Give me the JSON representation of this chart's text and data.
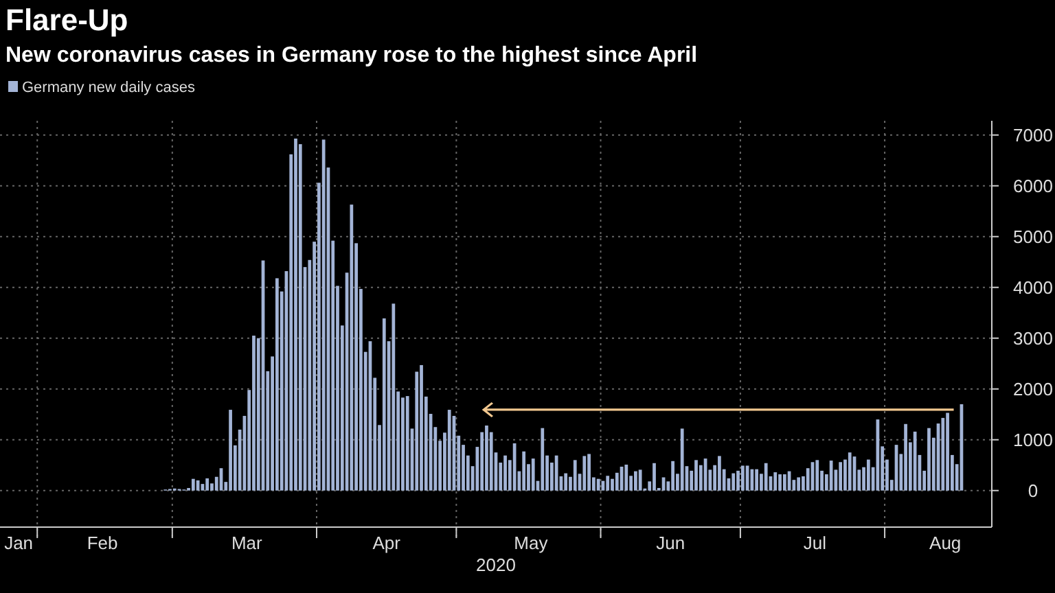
{
  "chart_data": {
    "type": "bar",
    "title": "Flare-Up",
    "subtitle": "New coronavirus cases in Germany rose to the highest since April",
    "xlabel": "2020",
    "x": [
      "2020-01-24",
      "2020-01-25",
      "2020-01-26",
      "2020-01-27",
      "2020-01-28",
      "2020-01-29",
      "2020-01-30",
      "2020-01-31",
      "2020-02-01",
      "2020-02-02",
      "2020-02-03",
      "2020-02-04",
      "2020-02-05",
      "2020-02-06",
      "2020-02-07",
      "2020-02-08",
      "2020-02-09",
      "2020-02-10",
      "2020-02-11",
      "2020-02-12",
      "2020-02-13",
      "2020-02-14",
      "2020-02-15",
      "2020-02-16",
      "2020-02-17",
      "2020-02-18",
      "2020-02-19",
      "2020-02-20",
      "2020-02-21",
      "2020-02-22",
      "2020-02-23",
      "2020-02-24",
      "2020-02-25",
      "2020-02-26",
      "2020-02-27",
      "2020-02-28",
      "2020-02-29",
      "2020-03-01",
      "2020-03-02",
      "2020-03-03",
      "2020-03-04",
      "2020-03-05",
      "2020-03-06",
      "2020-03-07",
      "2020-03-08",
      "2020-03-09",
      "2020-03-10",
      "2020-03-11",
      "2020-03-12",
      "2020-03-13",
      "2020-03-14",
      "2020-03-15",
      "2020-03-16",
      "2020-03-17",
      "2020-03-18",
      "2020-03-19",
      "2020-03-20",
      "2020-03-21",
      "2020-03-22",
      "2020-03-23",
      "2020-03-24",
      "2020-03-25",
      "2020-03-26",
      "2020-03-27",
      "2020-03-28",
      "2020-03-29",
      "2020-03-30",
      "2020-03-31",
      "2020-04-01",
      "2020-04-02",
      "2020-04-03",
      "2020-04-04",
      "2020-04-05",
      "2020-04-06",
      "2020-04-07",
      "2020-04-08",
      "2020-04-09",
      "2020-04-10",
      "2020-04-11",
      "2020-04-12",
      "2020-04-13",
      "2020-04-14",
      "2020-04-15",
      "2020-04-16",
      "2020-04-17",
      "2020-04-18",
      "2020-04-19",
      "2020-04-20",
      "2020-04-21",
      "2020-04-22",
      "2020-04-23",
      "2020-04-24",
      "2020-04-25",
      "2020-04-26",
      "2020-04-27",
      "2020-04-28",
      "2020-04-29",
      "2020-04-30",
      "2020-05-01",
      "2020-05-02",
      "2020-05-03",
      "2020-05-04",
      "2020-05-05",
      "2020-05-06",
      "2020-05-07",
      "2020-05-08",
      "2020-05-09",
      "2020-05-10",
      "2020-05-11",
      "2020-05-12",
      "2020-05-13",
      "2020-05-14",
      "2020-05-15",
      "2020-05-16",
      "2020-05-17",
      "2020-05-18",
      "2020-05-19",
      "2020-05-20",
      "2020-05-21",
      "2020-05-22",
      "2020-05-23",
      "2020-05-24",
      "2020-05-25",
      "2020-05-26",
      "2020-05-27",
      "2020-05-28",
      "2020-05-29",
      "2020-05-30",
      "2020-05-31",
      "2020-06-01",
      "2020-06-02",
      "2020-06-03",
      "2020-06-04",
      "2020-06-05",
      "2020-06-06",
      "2020-06-07",
      "2020-06-08",
      "2020-06-09",
      "2020-06-10",
      "2020-06-11",
      "2020-06-12",
      "2020-06-13",
      "2020-06-14",
      "2020-06-15",
      "2020-06-16",
      "2020-06-17",
      "2020-06-18",
      "2020-06-19",
      "2020-06-20",
      "2020-06-21",
      "2020-06-22",
      "2020-06-23",
      "2020-06-24",
      "2020-06-25",
      "2020-06-26",
      "2020-06-27",
      "2020-06-28",
      "2020-06-29",
      "2020-06-30",
      "2020-07-01",
      "2020-07-02",
      "2020-07-03",
      "2020-07-04",
      "2020-07-05",
      "2020-07-06",
      "2020-07-07",
      "2020-07-08",
      "2020-07-09",
      "2020-07-10",
      "2020-07-11",
      "2020-07-12",
      "2020-07-13",
      "2020-07-14",
      "2020-07-15",
      "2020-07-16",
      "2020-07-17",
      "2020-07-18",
      "2020-07-19",
      "2020-07-20",
      "2020-07-21",
      "2020-07-22",
      "2020-07-23",
      "2020-07-24",
      "2020-07-25",
      "2020-07-26",
      "2020-07-27",
      "2020-07-28",
      "2020-07-29",
      "2020-07-30",
      "2020-07-31",
      "2020-08-01",
      "2020-08-02",
      "2020-08-03",
      "2020-08-04",
      "2020-08-05",
      "2020-08-06",
      "2020-08-07",
      "2020-08-08",
      "2020-08-09",
      "2020-08-10",
      "2020-08-11",
      "2020-08-12",
      "2020-08-13",
      "2020-08-14",
      "2020-08-15",
      "2020-08-16",
      "2020-08-17"
    ],
    "series": [
      {
        "name": "Germany new daily cases",
        "color": "#a3b4d6",
        "values": [
          0,
          0,
          0,
          0,
          0,
          0,
          0,
          0,
          0,
          0,
          0,
          0,
          0,
          0,
          0,
          0,
          0,
          0,
          0,
          0,
          0,
          0,
          0,
          0,
          0,
          0,
          0,
          0,
          0,
          0,
          0,
          0,
          0,
          null,
          null,
          20,
          30,
          40,
          30,
          20,
          50,
          230,
          200,
          130,
          240,
          140,
          270,
          440,
          170,
          1590,
          890,
          1200,
          1470,
          1980,
          3050,
          3000,
          4530,
          2350,
          2640,
          4180,
          3920,
          4320,
          6620,
          6930,
          6820,
          4400,
          4540,
          4900,
          6060,
          6910,
          6360,
          4920,
          4030,
          3250,
          4290,
          5630,
          4870,
          3970,
          2730,
          2940,
          2220,
          1290,
          3390,
          2940,
          3680,
          1950,
          1830,
          1860,
          1220,
          2340,
          2470,
          1850,
          1510,
          1250,
          980,
          1140,
          1590,
          1470,
          1080,
          900,
          690,
          480,
          860,
          1150,
          1280,
          1150,
          750,
          550,
          690,
          600,
          930,
          380,
          770,
          520,
          630,
          190,
          1230,
          690,
          550,
          690,
          280,
          340,
          270,
          600,
          330,
          680,
          720,
          260,
          230,
          190,
          290,
          230,
          350,
          470,
          510,
          290,
          380,
          410,
          40,
          180,
          540,
          50,
          260,
          180,
          580,
          330,
          1220,
          480,
          390,
          600,
          500,
          630,
          410,
          500,
          680,
          420,
          240,
          340,
          390,
          490,
          490,
          420,
          420,
          330,
          540,
          280,
          360,
          320,
          320,
          380,
          210,
          260,
          280,
          440,
          560,
          600,
          390,
          320,
          590,
          410,
          560,
          610,
          750,
          670,
          410,
          460,
          610,
          460,
          1400,
          870,
          610,
          210,
          900,
          720,
          1310,
          950,
          1160,
          700,
          390,
          1230,
          1040,
          1320,
          1430,
          1530,
          700,
          520,
          1700
        ]
      }
    ],
    "xlim": [
      "2020-01-24",
      "2020-08-24"
    ],
    "xticks": [
      {
        "value": "2020-01-28",
        "label": "Jan"
      },
      {
        "value": "2020-02-01",
        "label": null
      },
      {
        "value": "2020-02-15",
        "label": "Feb"
      },
      {
        "value": "2020-03-01",
        "label": null
      },
      {
        "value": "2020-03-17",
        "label": "Mar"
      },
      {
        "value": "2020-04-01",
        "label": null
      },
      {
        "value": "2020-04-16",
        "label": "Apr"
      },
      {
        "value": "2020-05-01",
        "label": null
      },
      {
        "value": "2020-05-17",
        "label": "May"
      },
      {
        "value": "2020-06-01",
        "label": null
      },
      {
        "value": "2020-06-16",
        "label": "Jun"
      },
      {
        "value": "2020-07-01",
        "label": null
      },
      {
        "value": "2020-07-17",
        "label": "Jul"
      },
      {
        "value": "2020-08-01",
        "label": null
      },
      {
        "value": "2020-08-14",
        "label": "Aug"
      }
    ],
    "ylim": [
      -720,
      7280
    ],
    "yticks": [
      0,
      1000,
      2000,
      3000,
      4000,
      5000,
      6000,
      7000
    ],
    "grid": true,
    "legend": "top left"
  }
}
